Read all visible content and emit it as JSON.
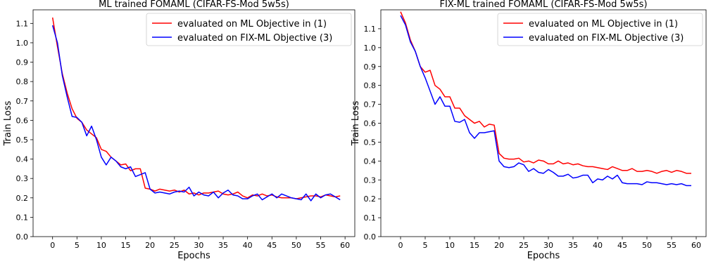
{
  "chart_data": [
    {
      "type": "line",
      "title": "ML trained FOMAML (CIFAR-FS-Mod 5w5s)",
      "xlabel": "Epochs",
      "ylabel": "Train Loss",
      "xlim": [
        -4,
        62
      ],
      "ylim": [
        0.0,
        1.17
      ],
      "xticks": [
        0,
        5,
        10,
        15,
        20,
        25,
        30,
        35,
        40,
        45,
        50,
        55,
        60
      ],
      "yticks": [
        0.0,
        0.1,
        0.2,
        0.3,
        0.4,
        0.5,
        0.6,
        0.7,
        0.8,
        0.9,
        1.0,
        1.1
      ],
      "legend_position": "top-right",
      "grid": false,
      "series": [
        {
          "name": "evaluated on ML Objective in (1)",
          "color": "#ff0000",
          "values": [
            1.13,
            0.98,
            0.84,
            0.74,
            0.66,
            0.61,
            0.59,
            0.55,
            0.53,
            0.51,
            0.45,
            0.44,
            0.41,
            0.39,
            0.37,
            0.375,
            0.34,
            0.35,
            0.35,
            0.25,
            0.245,
            0.235,
            0.245,
            0.24,
            0.235,
            0.24,
            0.23,
            0.24,
            0.22,
            0.225,
            0.215,
            0.225,
            0.225,
            0.23,
            0.235,
            0.22,
            0.215,
            0.22,
            0.23,
            0.21,
            0.2,
            0.215,
            0.21,
            0.22,
            0.21,
            0.215,
            0.205,
            0.2,
            0.2,
            0.2,
            0.195,
            0.2,
            0.205,
            0.21,
            0.21,
            0.205,
            0.215,
            0.21,
            0.205,
            0.21
          ]
        },
        {
          "name": "evaluated on FIX-ML Objective (3)",
          "color": "#0000ff",
          "values": [
            1.09,
            1.0,
            0.83,
            0.72,
            0.62,
            0.615,
            0.59,
            0.52,
            0.57,
            0.5,
            0.41,
            0.37,
            0.41,
            0.39,
            0.36,
            0.35,
            0.36,
            0.31,
            0.32,
            0.33,
            0.245,
            0.225,
            0.23,
            0.225,
            0.22,
            0.23,
            0.235,
            0.23,
            0.255,
            0.21,
            0.23,
            0.215,
            0.21,
            0.23,
            0.2,
            0.225,
            0.24,
            0.215,
            0.21,
            0.195,
            0.195,
            0.21,
            0.22,
            0.19,
            0.205,
            0.22,
            0.2,
            0.22,
            0.21,
            0.2,
            0.195,
            0.19,
            0.22,
            0.185,
            0.22,
            0.2,
            0.215,
            0.22,
            0.205,
            0.19
          ]
        }
      ]
    },
    {
      "type": "line",
      "title": "FIX-ML trained FOMAML (CIFAR-FS-Mod 5w5s)",
      "xlabel": "Epochs",
      "ylabel": "Train Loss",
      "xlim": [
        -4,
        62
      ],
      "ylim": [
        0.0,
        1.2
      ],
      "xticks": [
        0,
        5,
        10,
        15,
        20,
        25,
        30,
        35,
        40,
        45,
        50,
        55,
        60
      ],
      "yticks": [
        0.0,
        0.1,
        0.2,
        0.3,
        0.4,
        0.5,
        0.6,
        0.7,
        0.8,
        0.9,
        1.0,
        1.1
      ],
      "legend_position": "top-right",
      "grid": false,
      "series": [
        {
          "name": "evaluated on ML Objective in (1)",
          "color": "#ff0000",
          "values": [
            1.19,
            1.13,
            1.04,
            0.98,
            0.9,
            0.87,
            0.88,
            0.8,
            0.78,
            0.74,
            0.74,
            0.68,
            0.68,
            0.64,
            0.62,
            0.6,
            0.61,
            0.58,
            0.595,
            0.59,
            0.44,
            0.415,
            0.41,
            0.41,
            0.415,
            0.395,
            0.4,
            0.39,
            0.405,
            0.4,
            0.385,
            0.385,
            0.4,
            0.385,
            0.39,
            0.38,
            0.385,
            0.375,
            0.37,
            0.37,
            0.365,
            0.36,
            0.355,
            0.37,
            0.36,
            0.35,
            0.35,
            0.36,
            0.345,
            0.345,
            0.35,
            0.345,
            0.335,
            0.345,
            0.35,
            0.34,
            0.35,
            0.345,
            0.335,
            0.335
          ]
        },
        {
          "name": "evaluated on FIX-ML Objective (3)",
          "color": "#0000ff",
          "values": [
            1.17,
            1.12,
            1.03,
            0.98,
            0.9,
            0.84,
            0.77,
            0.7,
            0.74,
            0.69,
            0.69,
            0.61,
            0.605,
            0.62,
            0.55,
            0.52,
            0.55,
            0.55,
            0.555,
            0.56,
            0.4,
            0.37,
            0.365,
            0.37,
            0.39,
            0.38,
            0.345,
            0.36,
            0.34,
            0.335,
            0.355,
            0.34,
            0.32,
            0.32,
            0.33,
            0.31,
            0.315,
            0.325,
            0.325,
            0.285,
            0.305,
            0.3,
            0.32,
            0.305,
            0.325,
            0.285,
            0.28,
            0.28,
            0.28,
            0.275,
            0.29,
            0.285,
            0.285,
            0.28,
            0.275,
            0.28,
            0.275,
            0.28,
            0.27,
            0.27
          ]
        }
      ]
    }
  ]
}
